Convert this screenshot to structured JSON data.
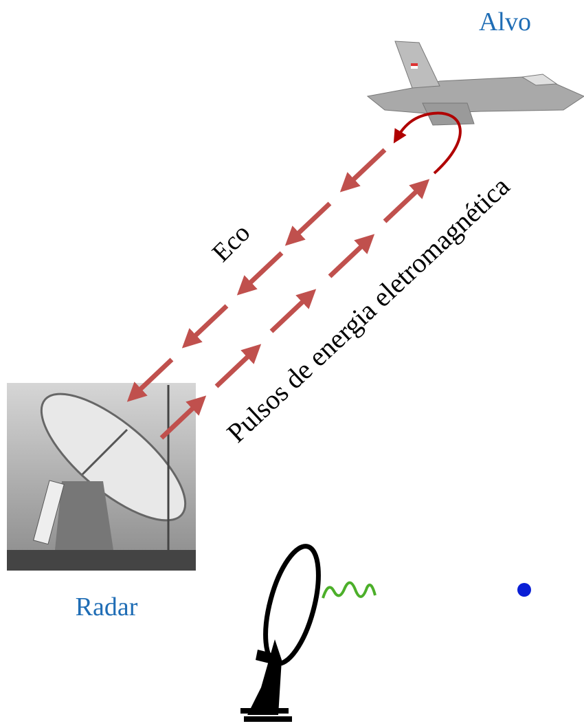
{
  "labels": {
    "target": "Alvo",
    "radar": "Radar",
    "echo": "Eco",
    "pulses": "Pulsos de energia eletromagnética"
  }
}
